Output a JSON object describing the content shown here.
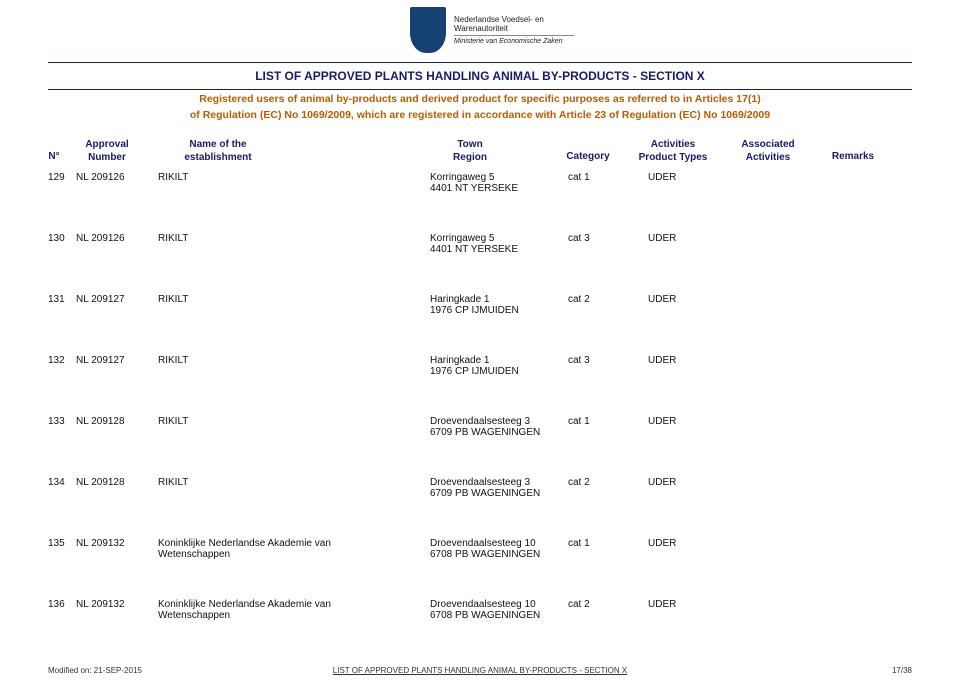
{
  "logo": {
    "line1": "Nederlandse Voedsel- en",
    "line2": "Warenautoriteit",
    "line3": "Ministerie van Economische Zaken"
  },
  "title": "LIST OF APPROVED PLANTS HANDLING ANIMAL BY-PRODUCTS - SECTION X",
  "subtitle_line1": "Registered users of animal by-products and derived product for specific purposes as referred to in Articles 17(1)",
  "subtitle_line2": "of Regulation (EC) No 1069/2009, which are registered in accordance with Article 23 of Regulation (EC) No 1069/2009",
  "headers": {
    "n": "N°",
    "approval_l1": "Approval",
    "approval_l2": "Number",
    "est_l1": "Name of the",
    "est_l2": "establishment",
    "town_l1": "Town",
    "town_l2": "Region",
    "category": "Category",
    "act_l1": "Activities",
    "act_l2": "Product Types",
    "asc_l1": "Associated",
    "asc_l2": "Activities",
    "remarks": "Remarks"
  },
  "rows": [
    {
      "n": "129",
      "approval": "NL 209126",
      "est": "RIKILT",
      "town_l1": "Korringaweg 5",
      "town_l2": "4401 NT  YERSEKE",
      "category": "cat 1",
      "activity": "UDER"
    },
    {
      "n": "130",
      "approval": "NL 209126",
      "est": "RIKILT",
      "town_l1": "Korringaweg 5",
      "town_l2": "4401 NT  YERSEKE",
      "category": "cat 3",
      "activity": "UDER"
    },
    {
      "n": "131",
      "approval": "NL 209127",
      "est": "RIKILT",
      "town_l1": "Haringkade 1",
      "town_l2": "1976 CP  IJMUIDEN",
      "category": "cat 2",
      "activity": "UDER"
    },
    {
      "n": "132",
      "approval": "NL 209127",
      "est": "RIKILT",
      "town_l1": "Haringkade 1",
      "town_l2": "1976 CP  IJMUIDEN",
      "category": "cat 3",
      "activity": "UDER"
    },
    {
      "n": "133",
      "approval": "NL 209128",
      "est": "RIKILT",
      "town_l1": "Droevendaalsesteeg 3",
      "town_l2": "6709 PB  WAGENINGEN",
      "category": "cat 1",
      "activity": "UDER"
    },
    {
      "n": "134",
      "approval": "NL 209128",
      "est": "RIKILT",
      "town_l1": "Droevendaalsesteeg 3",
      "town_l2": "6709 PB  WAGENINGEN",
      "category": "cat 2",
      "activity": "UDER"
    },
    {
      "n": "135",
      "approval": "NL 209132",
      "est": "Koninklijke Nederlandse Akademie van",
      "est_l2": "Wetenschappen",
      "town_l1": "Droevendaalsesteeg 10",
      "town_l2": "6708 PB  WAGENINGEN",
      "category": "cat 1",
      "activity": "UDER"
    },
    {
      "n": "136",
      "approval": "NL 209132",
      "est": "Koninklijke Nederlandse Akademie van",
      "est_l2": "Wetenschappen",
      "town_l1": "Droevendaalsesteeg 10",
      "town_l2": "6708 PB  WAGENINGEN",
      "category": "cat 2",
      "activity": "UDER"
    }
  ],
  "footer": {
    "modified": "Modified on: 21-SEP-2015",
    "center": "LIST OF APPROVED PLANTS HANDLING ANIMAL BY-PRODUCTS - SECTION X",
    "page": "17/38"
  },
  "colors": {
    "brand_blue": "#154273",
    "title_blue": "#1a1a6d",
    "subtitle_orange": "#b85c00"
  }
}
